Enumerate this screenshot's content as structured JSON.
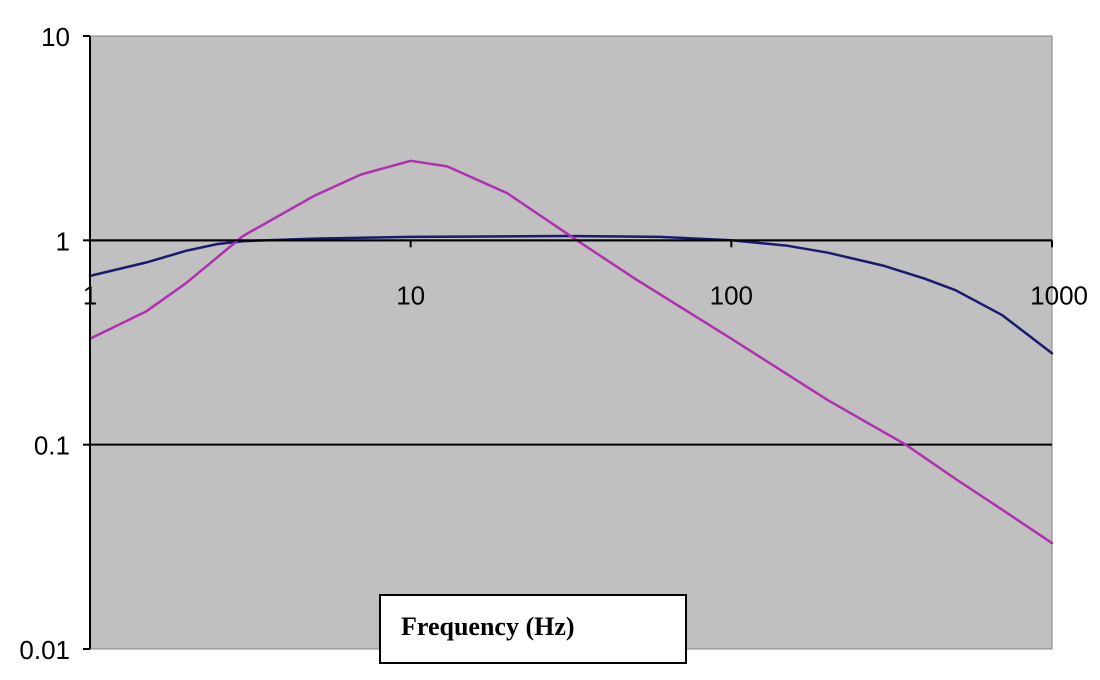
{
  "chart_data": {
    "type": "line",
    "xlabel": "Frequency (Hz)",
    "ylabel": "",
    "x_scale": "log",
    "y_scale": "log",
    "xlim": [
      1,
      1000
    ],
    "ylim": [
      0.01,
      10
    ],
    "x_ticks": [
      "1",
      "10",
      "100",
      "1000"
    ],
    "y_ticks": [
      "10",
      "1",
      "0.1",
      "0.01"
    ],
    "grid": "horizontal",
    "plot_background": "#c0c0c0",
    "series": [
      {
        "color": "#1a1a70",
        "points": [
          [
            1,
            0.67
          ],
          [
            1.5,
            0.78
          ],
          [
            2,
            0.89
          ],
          [
            2.5,
            0.96
          ],
          [
            3,
            0.99
          ],
          [
            5,
            1.02
          ],
          [
            10,
            1.04
          ],
          [
            30,
            1.05
          ],
          [
            60,
            1.04
          ],
          [
            100,
            1.0
          ],
          [
            150,
            0.94
          ],
          [
            200,
            0.87
          ],
          [
            300,
            0.75
          ],
          [
            400,
            0.65
          ],
          [
            500,
            0.57
          ],
          [
            700,
            0.43
          ],
          [
            1000,
            0.28
          ]
        ]
      },
      {
        "color": "#b030b0",
        "points": [
          [
            1,
            0.33
          ],
          [
            1.5,
            0.45
          ],
          [
            2,
            0.62
          ],
          [
            3,
            1.05
          ],
          [
            5,
            1.65
          ],
          [
            7,
            2.1
          ],
          [
            10,
            2.45
          ],
          [
            13,
            2.3
          ],
          [
            20,
            1.7
          ],
          [
            33,
            1.0
          ],
          [
            50,
            0.65
          ],
          [
            100,
            0.33
          ],
          [
            200,
            0.165
          ],
          [
            350,
            0.1
          ],
          [
            500,
            0.068
          ],
          [
            700,
            0.048
          ],
          [
            1000,
            0.033
          ]
        ]
      }
    ]
  }
}
